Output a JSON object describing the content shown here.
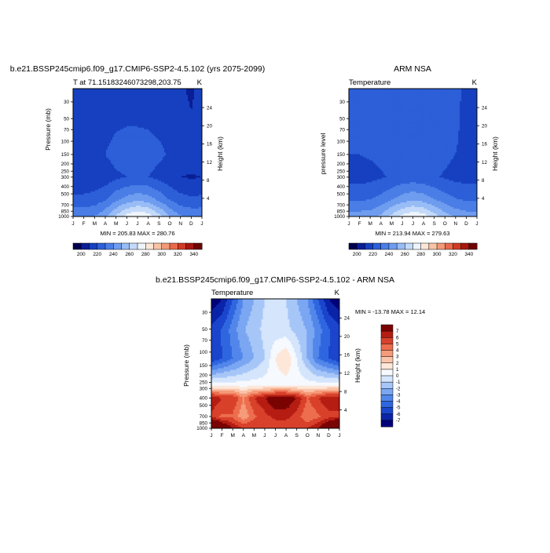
{
  "chart_data": [
    {
      "type": "heatmap",
      "title": "b.e21.BSSP245cmip6.f09_g17.CMIP6-SSP2-4.5.102 (yrs 2075-2099)",
      "subtitle_left": "T at 71.15183246073298,203.75",
      "units": "K",
      "ylabel": "Pressure (mb)",
      "ylabel_right": "Height (km)",
      "x_ticks": [
        "J",
        "F",
        "M",
        "A",
        "M",
        "J",
        "J",
        "A",
        "S",
        "O",
        "N",
        "D",
        "J"
      ],
      "y_ticks": [
        "30",
        "50",
        "70",
        "100",
        "150",
        "200",
        "250",
        "300",
        "400",
        "500",
        "700",
        "850",
        "1000"
      ],
      "height_ticks": [
        "24",
        "20",
        "16",
        "12",
        "8",
        "4"
      ],
      "stats": "MIN = 205.83 MAX = 280.76",
      "colorbar_labels": [
        "200",
        "220",
        "240",
        "260",
        "280",
        "300",
        "320",
        "340"
      ],
      "x_months": [
        0,
        1,
        2,
        3,
        4,
        5,
        6,
        7,
        8,
        9,
        10,
        11,
        12
      ],
      "surface_T": [
        238,
        238,
        240,
        248,
        262,
        274,
        281,
        276,
        264,
        250,
        241,
        238,
        238
      ],
      "low_T": [
        210,
        211,
        212,
        214,
        218,
        220,
        221,
        220,
        217,
        213,
        210,
        209,
        210
      ],
      "mid_T": [
        217,
        217,
        218,
        220,
        224,
        225,
        225,
        224,
        222,
        219,
        217,
        216,
        217
      ],
      "high_T": [
        214,
        213,
        213,
        214,
        215,
        216,
        216,
        216,
        215,
        214,
        212,
        208,
        214
      ],
      "log_p_scale": true
    },
    {
      "type": "heatmap",
      "title": "ARM NSA",
      "subtitle_left": "Temperature",
      "units": "K",
      "ylabel": "pressure level",
      "ylabel_right": "Height (km)",
      "x_ticks": [
        "J",
        "F",
        "M",
        "A",
        "M",
        "J",
        "J",
        "A",
        "S",
        "O",
        "N",
        "D",
        "J"
      ],
      "y_ticks": [
        "30",
        "50",
        "70",
        "100",
        "150",
        "200",
        "250",
        "300",
        "400",
        "500",
        "700",
        "850",
        "1000"
      ],
      "height_ticks": [
        "24",
        "20",
        "16",
        "12",
        "8",
        "4"
      ],
      "stats": "MIN = 213.94 MAX = 279.63",
      "colorbar_labels": [
        "200",
        "220",
        "240",
        "260",
        "280",
        "300",
        "320",
        "340"
      ],
      "x_months": [
        0,
        1,
        2,
        3,
        4,
        5,
        6,
        7,
        8,
        9,
        10,
        11,
        12
      ],
      "surface_T": [
        245,
        245,
        246,
        252,
        263,
        273,
        279,
        275,
        265,
        255,
        248,
        245,
        245
      ],
      "low_T": [
        216,
        216,
        217,
        219,
        221,
        223,
        224,
        223,
        221,
        219,
        217,
        216,
        216
      ],
      "mid_T": [
        220,
        220,
        221,
        222,
        225,
        226,
        226,
        226,
        224,
        222,
        220,
        219,
        220
      ],
      "high_T": [
        220,
        220,
        220,
        221,
        222,
        222,
        223,
        222,
        222,
        221,
        221,
        219,
        220
      ],
      "log_p_scale": true
    },
    {
      "type": "heatmap",
      "title": "b.e21.BSSP245cmip6.f09_g17.CMIP6-SSP2-4.5.102 - ARM NSA",
      "subtitle_left": "Temperature",
      "units": "K",
      "ylabel": "Pressure (mb)",
      "ylabel_right": "Height (km)",
      "x_ticks": [
        "J",
        "F",
        "M",
        "A",
        "M",
        "J",
        "J",
        "A",
        "S",
        "O",
        "N",
        "D",
        "J"
      ],
      "y_ticks": [
        "30",
        "50",
        "70",
        "100",
        "150",
        "200",
        "250",
        "300",
        "400",
        "500",
        "700",
        "850",
        "1000"
      ],
      "height_ticks": [
        "24",
        "20",
        "16",
        "12",
        "8",
        "4"
      ],
      "stats": "MIN = -13.78 MAX =  12.14",
      "colorbar_labels": [
        "7",
        "6",
        "5",
        "4",
        "3",
        "2",
        "1",
        "0",
        "-1",
        "-2",
        "-3",
        "-4",
        "-5",
        "-6",
        "-7"
      ],
      "x_months": [
        0,
        1,
        2,
        3,
        4,
        5,
        6,
        7,
        8,
        9,
        10,
        11,
        12
      ],
      "surface_diff": [
        12,
        9,
        7,
        6,
        6,
        5,
        5,
        5,
        6,
        6,
        7,
        9,
        12
      ],
      "lowtrop_diff": [
        7,
        6,
        6,
        4,
        6,
        7,
        8,
        8,
        7,
        5,
        6,
        7,
        7
      ],
      "tropopause_diff": [
        -6,
        -5,
        -4,
        -3,
        -2,
        -1,
        1,
        2,
        0,
        -2,
        -4,
        -5,
        -6
      ],
      "upper_diff": [
        -8,
        -7,
        -5,
        -3,
        -2,
        -1,
        -1,
        -1,
        -2,
        -3,
        -5,
        -7,
        -8
      ],
      "log_p_scale": true
    }
  ],
  "colors": {
    "temperature_scale": [
      "#00004d",
      "#0a1e96",
      "#1640c0",
      "#2c5fd8",
      "#4a7ee6",
      "#6e9cef",
      "#98bcf5",
      "#c4daf9",
      "#eef4fc",
      "#fbe6d6",
      "#f8c3a5",
      "#f29a76",
      "#e96a4b",
      "#d23a26",
      "#a8170f",
      "#6e0404"
    ],
    "diff_scale": [
      "#00007a",
      "#0a23a8",
      "#1a45cc",
      "#2f66e0",
      "#5286ea",
      "#7aa6f2",
      "#a7c6f8",
      "#d4e5fc",
      "#f6f9fe",
      "#fde7d9",
      "#fac4aa",
      "#f59b7a",
      "#ec6e4f",
      "#d8412b",
      "#b51d13",
      "#7a0403"
    ]
  }
}
